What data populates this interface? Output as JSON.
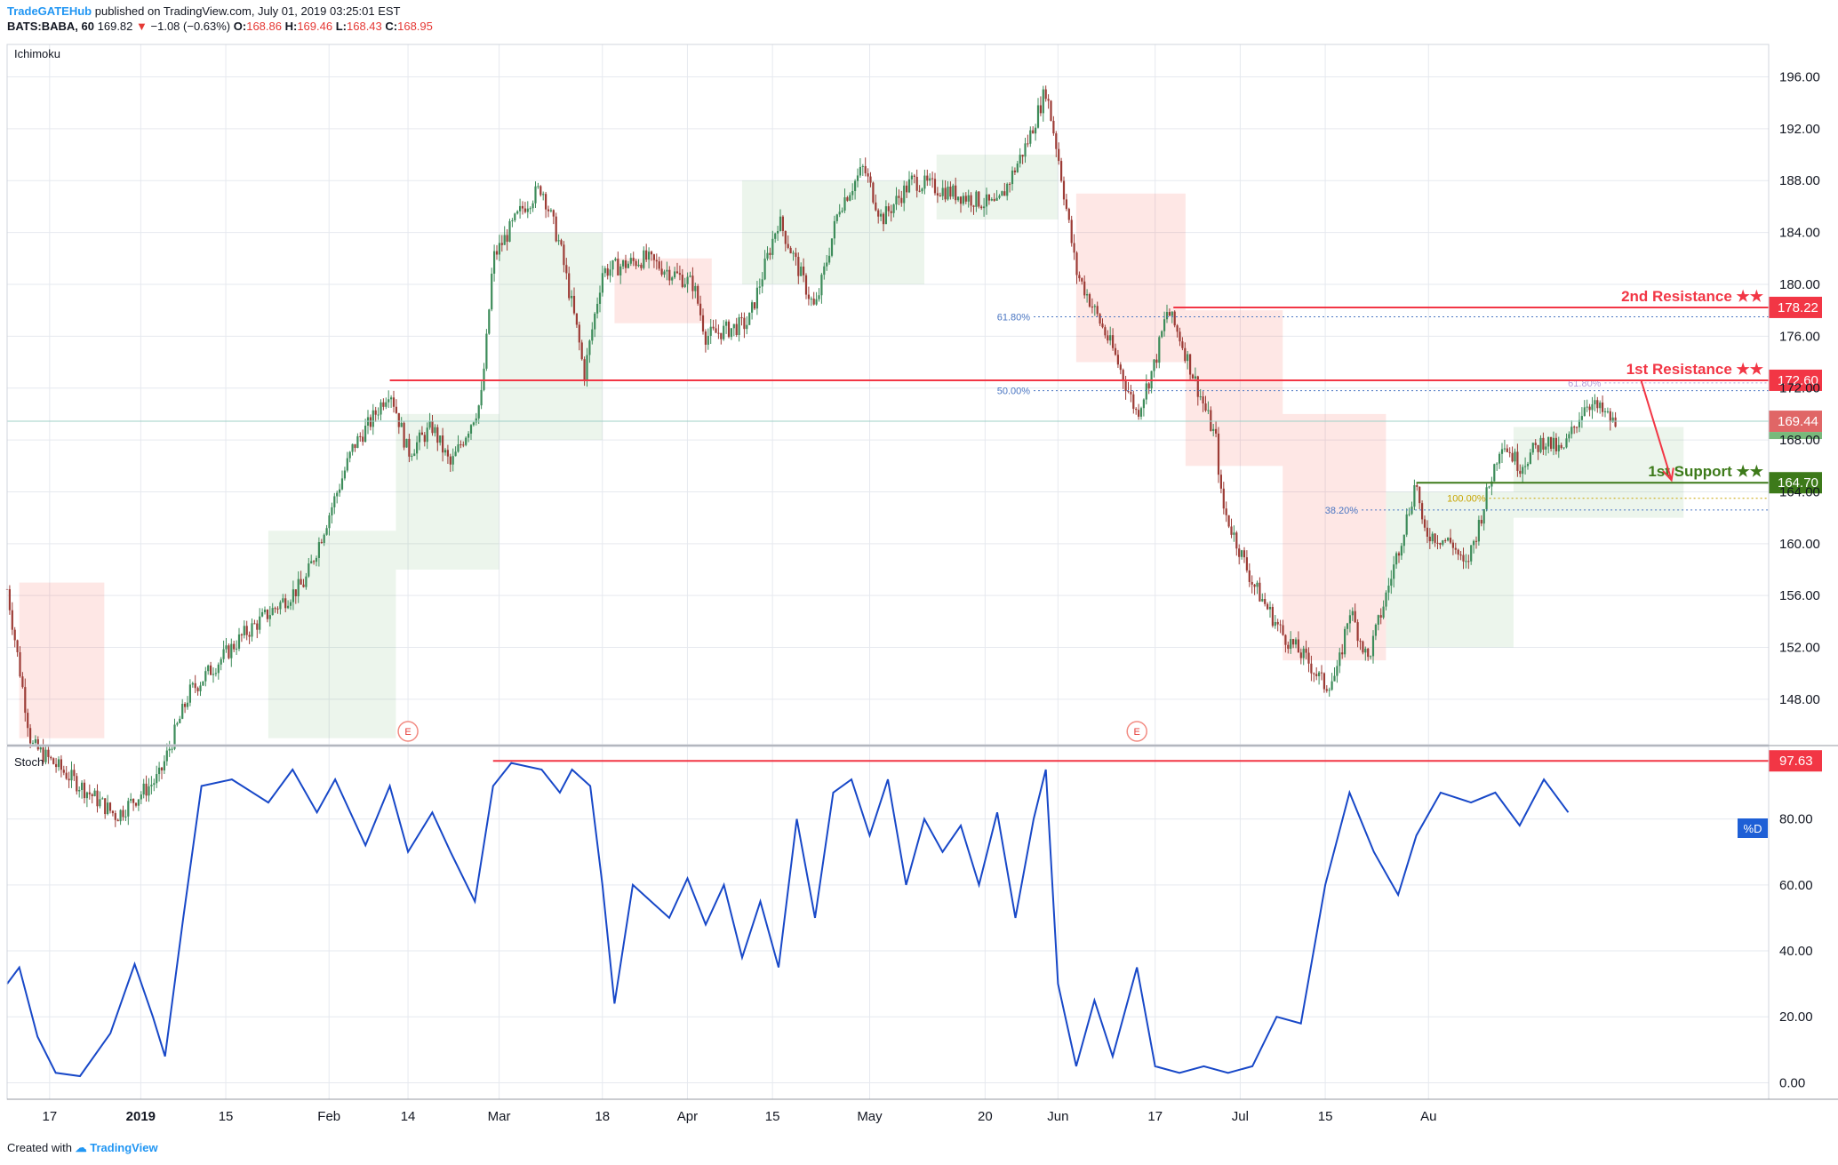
{
  "header": {
    "publisher": "TradeGATEHub",
    "published_text": "published on TradingView.com, July 01, 2019 03:25:01 EST",
    "symbol": "BATS:BABA, 60",
    "last": "169.82",
    "change": "−1.08 (−0.63%)",
    "open_label": "O:",
    "open": "168.86",
    "high_label": "H:",
    "high": "169.46",
    "low_label": "L:",
    "low": "168.43",
    "close_label": "C:",
    "close": "168.95"
  },
  "footer": {
    "created_with": "Created with",
    "brand": "TradingView"
  },
  "colors": {
    "up": "#26a69a",
    "down": "#ef5350",
    "candle_up": "#3d8c5a",
    "candle_down": "#9c3b35",
    "resistance": "#f23645",
    "support": "#3d7a1a",
    "stoch": "#1848c8",
    "grid": "#e6e9ef"
  },
  "chart_data": [
    {
      "type": "candlestick",
      "title": "",
      "indicator_label": "Ichimoku",
      "ylim": [
        144.5,
        198.5
      ],
      "y_ticks": [
        "148.00",
        "152.00",
        "156.00",
        "160.00",
        "164.00",
        "168.00",
        "172.00",
        "176.00",
        "180.00",
        "184.00",
        "188.00",
        "192.00",
        "196.00"
      ],
      "x_ticks": [
        "17",
        "2019",
        "15",
        "Feb",
        "14",
        "Mar",
        "18",
        "Apr",
        "15",
        "May",
        "20",
        "Jun",
        "17",
        "Jul",
        "15",
        "Au"
      ],
      "price_path": [
        {
          "date": "2018-12-10",
          "close": 156.5
        },
        {
          "date": "2018-12-14",
          "close": 144.5
        },
        {
          "date": "2018-12-28",
          "close": 139.0
        },
        {
          "date": "2019-01-04",
          "close": 142.0
        },
        {
          "date": "2019-01-09",
          "close": 148.5
        },
        {
          "date": "2019-01-18",
          "close": 153.0
        },
        {
          "date": "2019-01-28",
          "close": 157.0
        },
        {
          "date": "2019-02-05",
          "close": 167.5
        },
        {
          "date": "2019-02-08",
          "close": 169.5
        },
        {
          "date": "2019-02-11",
          "close": 172.0
        },
        {
          "date": "2019-02-14",
          "close": 167.0
        },
        {
          "date": "2019-02-18",
          "close": 169.0
        },
        {
          "date": "2019-02-21",
          "close": 166.0
        },
        {
          "date": "2019-02-26",
          "close": 171.0
        },
        {
          "date": "2019-02-27",
          "close": 176.0
        },
        {
          "date": "2019-02-28",
          "close": 182.0
        },
        {
          "date": "2019-03-05",
          "close": 186.0
        },
        {
          "date": "2019-03-08",
          "close": 187.5
        },
        {
          "date": "2019-03-11",
          "close": 183.0
        },
        {
          "date": "2019-03-14",
          "close": 176.0
        },
        {
          "date": "2019-03-15",
          "close": 173.0
        },
        {
          "date": "2019-03-18",
          "close": 181.0
        },
        {
          "date": "2019-03-25",
          "close": 182.0
        },
        {
          "date": "2019-04-02",
          "close": 180.0
        },
        {
          "date": "2019-04-04",
          "close": 176.0
        },
        {
          "date": "2019-04-11",
          "close": 177.0
        },
        {
          "date": "2019-04-16",
          "close": 185.0
        },
        {
          "date": "2019-04-22",
          "close": 178.0
        },
        {
          "date": "2019-04-26",
          "close": 186.0
        },
        {
          "date": "2019-04-30",
          "close": 189.0
        },
        {
          "date": "2019-05-03",
          "close": 185.0
        },
        {
          "date": "2019-05-08",
          "close": 188.0
        },
        {
          "date": "2019-05-15",
          "close": 187.0
        },
        {
          "date": "2019-05-22",
          "close": 186.0
        },
        {
          "date": "2019-05-27",
          "close": 191.0
        },
        {
          "date": "2019-05-30",
          "close": 195.0
        },
        {
          "date": "2019-06-01",
          "close": 190.0
        },
        {
          "date": "2019-06-04",
          "close": 181.0
        },
        {
          "date": "2019-06-07",
          "close": 178.0
        },
        {
          "date": "2019-06-10",
          "close": 175.0
        },
        {
          "date": "2019-06-14",
          "close": 170.0
        },
        {
          "date": "2019-06-17",
          "close": 174.0
        },
        {
          "date": "2019-06-19",
          "close": 178.0
        },
        {
          "date": "2019-06-21",
          "close": 176.0
        },
        {
          "date": "2019-06-24",
          "close": 172.0
        },
        {
          "date": "2019-06-27",
          "close": 168.0
        },
        {
          "date": "2019-06-28",
          "close": 163.0
        },
        {
          "date": "2019-07-03",
          "close": 157.0
        },
        {
          "date": "2019-07-08",
          "close": 153.0
        },
        {
          "date": "2019-07-12",
          "close": 151.0
        },
        {
          "date": "2019-07-15",
          "close": 149.0
        },
        {
          "date": "2019-07-17",
          "close": 150.0
        },
        {
          "date": "2019-07-19",
          "close": 155.0
        },
        {
          "date": "2019-07-22",
          "close": 151.0
        },
        {
          "date": "2019-07-25",
          "close": 156.0
        },
        {
          "date": "2019-07-29",
          "close": 163.0
        },
        {
          "date": "2019-07-30",
          "close": 165.0
        },
        {
          "date": "2019-07-31",
          "close": 161.0
        },
        {
          "date": "2019-08-05",
          "close": 160.0
        },
        {
          "date": "2019-08-07",
          "close": 158.0
        },
        {
          "date": "2019-08-09",
          "close": 161.0
        },
        {
          "date": "2019-08-13",
          "close": 168.0
        },
        {
          "date": "2019-08-16",
          "close": 166.0
        },
        {
          "date": "2019-08-20",
          "close": 168.0
        },
        {
          "date": "2019-08-23",
          "close": 167.0
        },
        {
          "date": "2019-08-27",
          "close": 171.0
        },
        {
          "date": "2019-08-30",
          "close": 170.0
        },
        {
          "date": "2019-09-01",
          "close": 169.0
        }
      ],
      "ichimoku_cloud": [
        {
          "from": "2018-12-12",
          "to": "2018-12-26",
          "low": 145.0,
          "high": 157.0,
          "color": "bear"
        },
        {
          "from": "2019-01-22",
          "to": "2019-02-12",
          "low": 145.0,
          "high": 161.0,
          "color": "bull"
        },
        {
          "from": "2019-02-12",
          "to": "2019-03-01",
          "low": 158.0,
          "high": 170.0,
          "color": "bull"
        },
        {
          "from": "2019-03-01",
          "to": "2019-03-18",
          "low": 168.0,
          "high": 184.0,
          "color": "bull"
        },
        {
          "from": "2019-03-20",
          "to": "2019-04-05",
          "low": 177.0,
          "high": 182.0,
          "color": "bear"
        },
        {
          "from": "2019-04-10",
          "to": "2019-05-10",
          "low": 180.0,
          "high": 188.0,
          "color": "bull"
        },
        {
          "from": "2019-05-12",
          "to": "2019-06-01",
          "low": 185.0,
          "high": 190.0,
          "color": "bull"
        },
        {
          "from": "2019-06-04",
          "to": "2019-06-22",
          "low": 174.0,
          "high": 187.0,
          "color": "bear"
        },
        {
          "from": "2019-06-22",
          "to": "2019-07-08",
          "low": 166.0,
          "high": 178.0,
          "color": "bear"
        },
        {
          "from": "2019-07-08",
          "to": "2019-07-25",
          "low": 151.0,
          "high": 170.0,
          "color": "bear"
        },
        {
          "from": "2019-07-25",
          "to": "2019-08-15",
          "low": 152.0,
          "high": 164.0,
          "color": "bull"
        },
        {
          "from": "2019-08-15",
          "to": "2019-09-12",
          "low": 162.0,
          "high": 169.0,
          "color": "bull"
        }
      ],
      "levels": [
        {
          "label": "2nd Resistance ★★",
          "value": 178.22,
          "tag": "178.22",
          "from": "2019-06-20",
          "kind": "resistance"
        },
        {
          "label": "1st Resistance ★★",
          "value": 172.6,
          "tag": "172.60",
          "from": "2019-02-11",
          "kind": "resistance"
        },
        {
          "label": "1st Support ★★",
          "value": 164.7,
          "tag": "164.70",
          "from": "2019-07-30",
          "kind": "support"
        }
      ],
      "last_price": {
        "value": 169.44,
        "tag": "169.44"
      },
      "fib_levels": [
        {
          "label": "61.80%",
          "value": 177.5,
          "from": "2019-05-28",
          "color": "#4a76c2"
        },
        {
          "label": "50.00%",
          "value": 171.8,
          "from": "2019-05-28",
          "color": "#4a76c2"
        },
        {
          "label": "61.80%",
          "value": 172.4,
          "from": "2019-08-30",
          "color": "#b39ddb"
        },
        {
          "label": "100.00%",
          "value": 163.5,
          "from": "2019-08-11",
          "color": "#c8a400"
        },
        {
          "label": "38.20%",
          "value": 162.6,
          "from": "2019-07-21",
          "color": "#4a76c2"
        }
      ],
      "arrow": {
        "from_date": "2019-09-05",
        "from_value": 172.6,
        "to_date": "2019-09-10",
        "to_value": 164.9
      },
      "earnings_markers": [
        {
          "date": "2019-02-14",
          "label": "E"
        },
        {
          "date": "2019-06-14",
          "label": "E"
        }
      ]
    },
    {
      "type": "line",
      "title": "",
      "indicator_label": "Stoch",
      "ylim": [
        -5,
        102
      ],
      "y_ticks": [
        "0.00",
        "20.00",
        "40.00",
        "60.00",
        "80.00"
      ],
      "series": [
        {
          "name": "%D",
          "points": [
            {
              "date": "2018-12-10",
              "value": 30
            },
            {
              "date": "2018-12-12",
              "value": 35
            },
            {
              "date": "2018-12-15",
              "value": 14
            },
            {
              "date": "2018-12-18",
              "value": 3
            },
            {
              "date": "2018-12-22",
              "value": 2
            },
            {
              "date": "2018-12-27",
              "value": 15
            },
            {
              "date": "2018-12-31",
              "value": 36
            },
            {
              "date": "2019-01-03",
              "value": 20
            },
            {
              "date": "2019-01-05",
              "value": 8
            },
            {
              "date": "2019-01-08",
              "value": 50
            },
            {
              "date": "2019-01-11",
              "value": 90
            },
            {
              "date": "2019-01-16",
              "value": 92
            },
            {
              "date": "2019-01-22",
              "value": 85
            },
            {
              "date": "2019-01-26",
              "value": 95
            },
            {
              "date": "2019-01-30",
              "value": 82
            },
            {
              "date": "2019-02-02",
              "value": 92
            },
            {
              "date": "2019-02-07",
              "value": 72
            },
            {
              "date": "2019-02-11",
              "value": 90
            },
            {
              "date": "2019-02-14",
              "value": 70
            },
            {
              "date": "2019-02-18",
              "value": 82
            },
            {
              "date": "2019-02-21",
              "value": 70
            },
            {
              "date": "2019-02-25",
              "value": 55
            },
            {
              "date": "2019-02-28",
              "value": 90
            },
            {
              "date": "2019-03-03",
              "value": 97
            },
            {
              "date": "2019-03-08",
              "value": 95
            },
            {
              "date": "2019-03-11",
              "value": 88
            },
            {
              "date": "2019-03-13",
              "value": 95
            },
            {
              "date": "2019-03-16",
              "value": 90
            },
            {
              "date": "2019-03-18",
              "value": 60
            },
            {
              "date": "2019-03-20",
              "value": 24
            },
            {
              "date": "2019-03-23",
              "value": 60
            },
            {
              "date": "2019-03-26",
              "value": 55
            },
            {
              "date": "2019-03-29",
              "value": 50
            },
            {
              "date": "2019-04-01",
              "value": 62
            },
            {
              "date": "2019-04-04",
              "value": 48
            },
            {
              "date": "2019-04-07",
              "value": 60
            },
            {
              "date": "2019-04-10",
              "value": 38
            },
            {
              "date": "2019-04-13",
              "value": 55
            },
            {
              "date": "2019-04-16",
              "value": 35
            },
            {
              "date": "2019-04-19",
              "value": 80
            },
            {
              "date": "2019-04-22",
              "value": 50
            },
            {
              "date": "2019-04-25",
              "value": 88
            },
            {
              "date": "2019-04-28",
              "value": 92
            },
            {
              "date": "2019-05-01",
              "value": 75
            },
            {
              "date": "2019-05-04",
              "value": 92
            },
            {
              "date": "2019-05-07",
              "value": 60
            },
            {
              "date": "2019-05-10",
              "value": 80
            },
            {
              "date": "2019-05-13",
              "value": 70
            },
            {
              "date": "2019-05-16",
              "value": 78
            },
            {
              "date": "2019-05-19",
              "value": 60
            },
            {
              "date": "2019-05-22",
              "value": 82
            },
            {
              "date": "2019-05-25",
              "value": 50
            },
            {
              "date": "2019-05-28",
              "value": 80
            },
            {
              "date": "2019-05-30",
              "value": 95
            },
            {
              "date": "2019-06-01",
              "value": 30
            },
            {
              "date": "2019-06-04",
              "value": 5
            },
            {
              "date": "2019-06-07",
              "value": 25
            },
            {
              "date": "2019-06-10",
              "value": 8
            },
            {
              "date": "2019-06-14",
              "value": 35
            },
            {
              "date": "2019-06-17",
              "value": 5
            },
            {
              "date": "2019-06-21",
              "value": 3
            },
            {
              "date": "2019-06-25",
              "value": 5
            },
            {
              "date": "2019-06-29",
              "value": 3
            },
            {
              "date": "2019-07-03",
              "value": 5
            },
            {
              "date": "2019-07-07",
              "value": 20
            },
            {
              "date": "2019-07-11",
              "value": 18
            },
            {
              "date": "2019-07-15",
              "value": 60
            },
            {
              "date": "2019-07-19",
              "value": 88
            },
            {
              "date": "2019-07-23",
              "value": 70
            },
            {
              "date": "2019-07-27",
              "value": 57
            },
            {
              "date": "2019-07-30",
              "value": 75
            },
            {
              "date": "2019-08-03",
              "value": 88
            },
            {
              "date": "2019-08-08",
              "value": 85
            },
            {
              "date": "2019-08-12",
              "value": 88
            },
            {
              "date": "2019-08-16",
              "value": 78
            },
            {
              "date": "2019-08-20",
              "value": 92
            },
            {
              "date": "2019-08-24",
              "value": 82
            }
          ]
        }
      ],
      "levels": [
        {
          "value": 97.63,
          "tag": "97.63",
          "from": "2019-02-28"
        }
      ],
      "legend_label": "%D"
    }
  ]
}
